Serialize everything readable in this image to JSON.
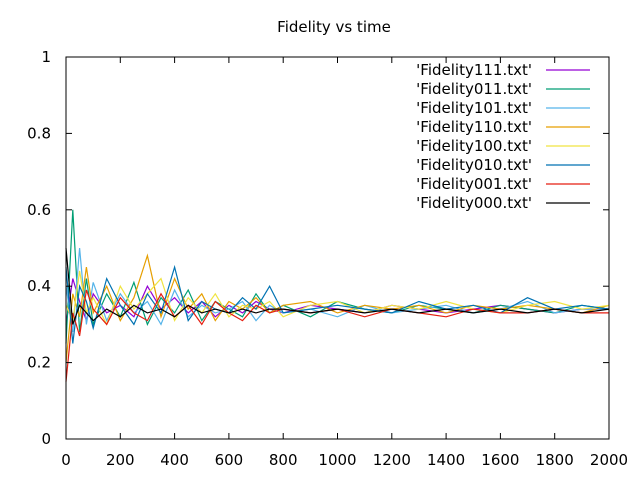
{
  "chart_data": {
    "type": "line",
    "title": "Fidelity vs time",
    "xlabel": "",
    "ylabel": "",
    "xlim": [
      0,
      2000
    ],
    "ylim": [
      0,
      1
    ],
    "x_ticks": [
      "0",
      "200",
      "400",
      "600",
      "800",
      "1000",
      "1200",
      "1400",
      "1600",
      "1800",
      "2000"
    ],
    "y_ticks": [
      "0",
      "0.2",
      "0.4",
      "0.6",
      "0.8",
      "1"
    ],
    "grid": false,
    "legend_position": "top-right",
    "x": [
      0,
      25,
      50,
      75,
      100,
      150,
      200,
      250,
      300,
      350,
      400,
      450,
      500,
      550,
      600,
      650,
      700,
      750,
      800,
      900,
      1000,
      1100,
      1200,
      1300,
      1400,
      1500,
      1600,
      1700,
      1800,
      1900,
      2000
    ],
    "series": [
      {
        "name": "'Fidelity111.txt'",
        "color": "#9400d3",
        "values": [
          0.3,
          0.42,
          0.36,
          0.31,
          0.38,
          0.33,
          0.35,
          0.32,
          0.4,
          0.34,
          0.37,
          0.33,
          0.36,
          0.32,
          0.35,
          0.33,
          0.36,
          0.34,
          0.33,
          0.35,
          0.34,
          0.33,
          0.35,
          0.34,
          0.33,
          0.34,
          0.35,
          0.34,
          0.33,
          0.34,
          0.34
        ]
      },
      {
        "name": "'Fidelity011.txt'",
        "color": "#009e73",
        "values": [
          0.25,
          0.6,
          0.28,
          0.42,
          0.3,
          0.38,
          0.32,
          0.41,
          0.3,
          0.37,
          0.33,
          0.39,
          0.31,
          0.36,
          0.34,
          0.32,
          0.38,
          0.33,
          0.35,
          0.32,
          0.36,
          0.34,
          0.33,
          0.35,
          0.34,
          0.33,
          0.35,
          0.34,
          0.33,
          0.35,
          0.34
        ]
      },
      {
        "name": "'Fidelity101.txt'",
        "color": "#56b4e9",
        "values": [
          0.4,
          0.28,
          0.5,
          0.3,
          0.41,
          0.31,
          0.38,
          0.33,
          0.36,
          0.3,
          0.39,
          0.32,
          0.35,
          0.33,
          0.34,
          0.36,
          0.31,
          0.35,
          0.33,
          0.34,
          0.32,
          0.35,
          0.33,
          0.34,
          0.35,
          0.33,
          0.34,
          0.36,
          0.33,
          0.34,
          0.34
        ]
      },
      {
        "name": "'Fidelity110.txt'",
        "color": "#e69f00",
        "values": [
          0.2,
          0.38,
          0.32,
          0.45,
          0.33,
          0.4,
          0.31,
          0.37,
          0.48,
          0.32,
          0.42,
          0.34,
          0.38,
          0.31,
          0.36,
          0.34,
          0.37,
          0.33,
          0.35,
          0.36,
          0.33,
          0.35,
          0.34,
          0.35,
          0.33,
          0.35,
          0.34,
          0.35,
          0.34,
          0.33,
          0.35
        ]
      },
      {
        "name": "'Fidelity100.txt'",
        "color": "#f0e442",
        "values": [
          0.35,
          0.31,
          0.44,
          0.33,
          0.37,
          0.3,
          0.4,
          0.34,
          0.38,
          0.42,
          0.31,
          0.37,
          0.33,
          0.38,
          0.32,
          0.35,
          0.34,
          0.36,
          0.32,
          0.35,
          0.36,
          0.33,
          0.35,
          0.34,
          0.36,
          0.34,
          0.33,
          0.35,
          0.36,
          0.34,
          0.35
        ]
      },
      {
        "name": "'Fidelity010.txt'",
        "color": "#0072b2",
        "values": [
          0.45,
          0.25,
          0.4,
          0.36,
          0.29,
          0.42,
          0.35,
          0.3,
          0.38,
          0.33,
          0.45,
          0.31,
          0.36,
          0.34,
          0.33,
          0.37,
          0.34,
          0.4,
          0.33,
          0.34,
          0.35,
          0.34,
          0.33,
          0.36,
          0.34,
          0.35,
          0.33,
          0.37,
          0.34,
          0.35,
          0.34
        ]
      },
      {
        "name": "'Fidelity001.txt'",
        "color": "#e51e10",
        "values": [
          0.15,
          0.33,
          0.27,
          0.39,
          0.34,
          0.3,
          0.37,
          0.33,
          0.31,
          0.38,
          0.32,
          0.35,
          0.3,
          0.36,
          0.33,
          0.31,
          0.35,
          0.33,
          0.34,
          0.33,
          0.34,
          0.32,
          0.34,
          0.33,
          0.32,
          0.34,
          0.33,
          0.33,
          0.34,
          0.33,
          0.33
        ]
      },
      {
        "name": "'Fidelity000.txt'",
        "color": "#000000",
        "values": [
          0.5,
          0.3,
          0.35,
          0.33,
          0.31,
          0.34,
          0.32,
          0.35,
          0.33,
          0.34,
          0.32,
          0.35,
          0.33,
          0.34,
          0.33,
          0.34,
          0.33,
          0.34,
          0.34,
          0.33,
          0.34,
          0.33,
          0.34,
          0.33,
          0.34,
          0.33,
          0.34,
          0.33,
          0.34,
          0.33,
          0.34
        ]
      }
    ]
  }
}
